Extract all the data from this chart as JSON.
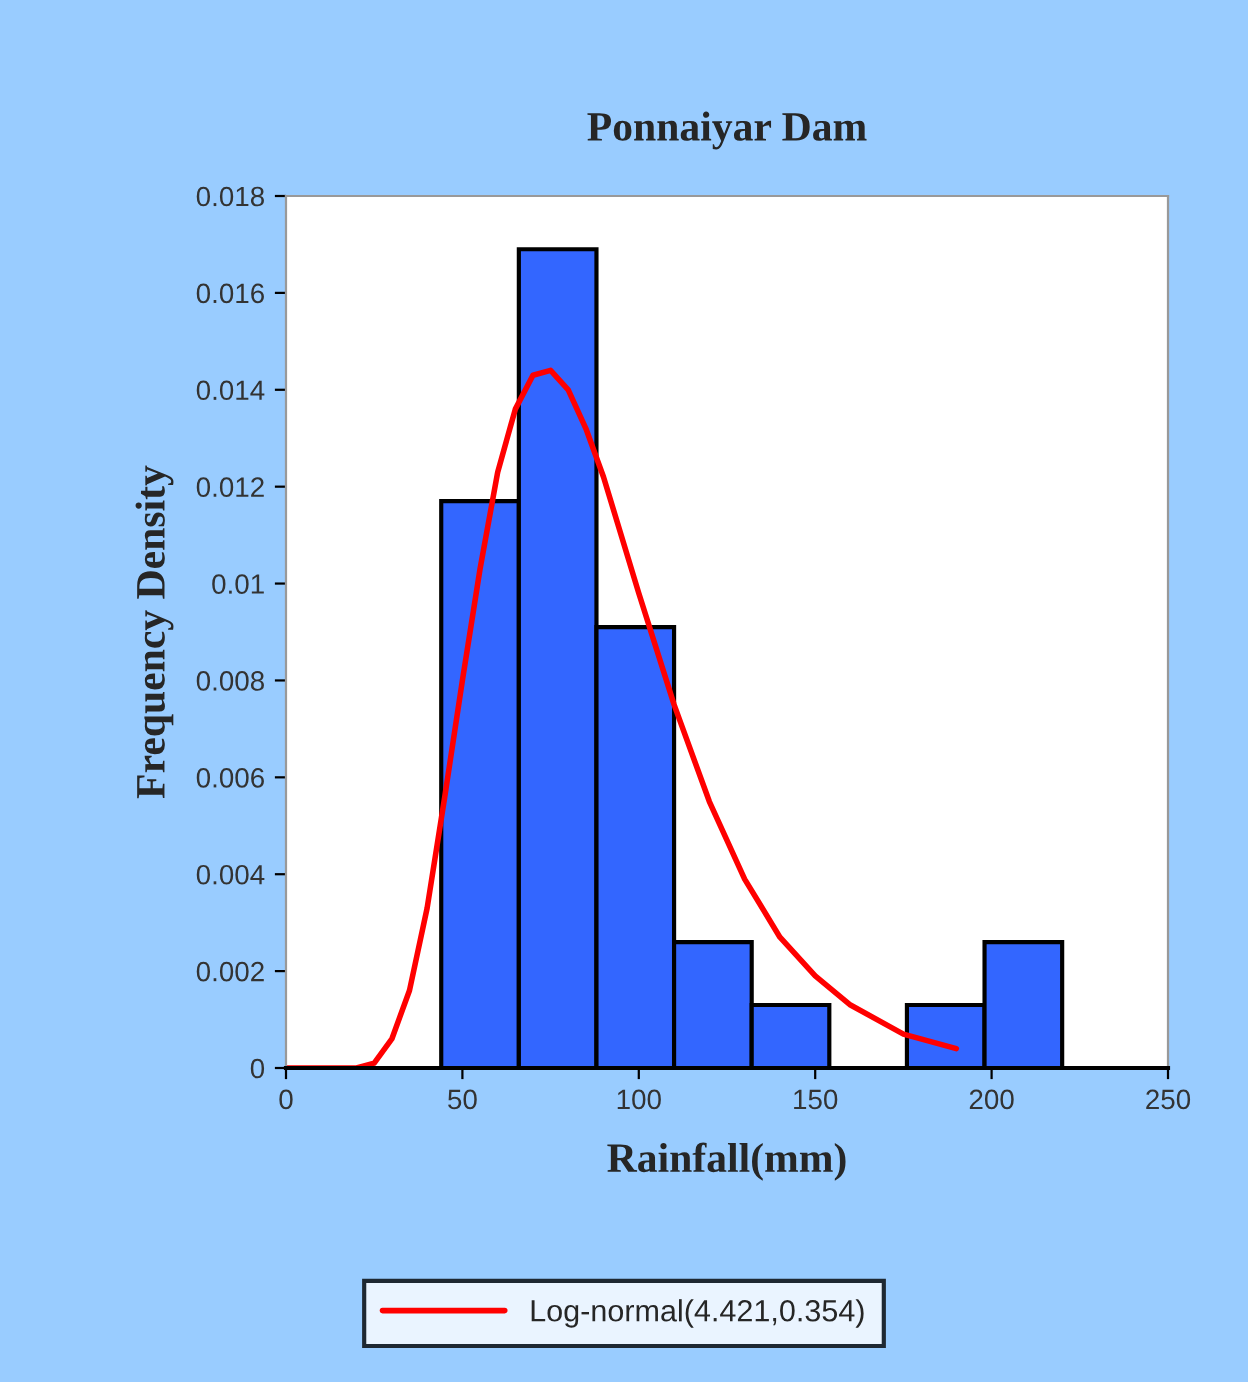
{
  "chart_data": {
    "type": "histogram",
    "title": "Ponnaiyar Dam",
    "xlabel": "Rainfall(mm)",
    "ylabel": "Frequency Density",
    "bins": [
      44,
      66,
      88,
      110,
      132,
      154,
      176,
      198,
      220
    ],
    "values": [
      0.0117,
      0.0169,
      0.0091,
      0.0026,
      0.0013,
      0,
      0.0013,
      0.0026
    ],
    "color": "#3366ff",
    "series": [
      {
        "type": "line",
        "name": "Log-normal(4.421,0.354)",
        "color": "#ff0000",
        "x": [
          0,
          10,
          20,
          25,
          30,
          35,
          40,
          45,
          50,
          55,
          60,
          65,
          70,
          75,
          80,
          85,
          90,
          100,
          110,
          120,
          130,
          140,
          150,
          160,
          175,
          190
        ],
        "values": [
          0,
          0,
          0,
          0.0001,
          0.0006,
          0.0016,
          0.0033,
          0.0056,
          0.008,
          0.0103,
          0.0123,
          0.0136,
          0.0143,
          0.0144,
          0.014,
          0.0132,
          0.0122,
          0.0098,
          0.0075,
          0.0055,
          0.0039,
          0.0027,
          0.0019,
          0.0013,
          0.0007,
          0.0004
        ]
      }
    ],
    "xlim": [
      0,
      250
    ],
    "xticks": [
      0,
      50,
      100,
      150,
      200,
      250
    ],
    "ylim": [
      0,
      0.018
    ],
    "yticks": [
      0,
      0.002,
      0.004,
      0.006,
      0.008,
      0.01,
      0.012,
      0.014,
      0.016,
      0.018
    ],
    "grid": false,
    "legend": "bottom"
  }
}
